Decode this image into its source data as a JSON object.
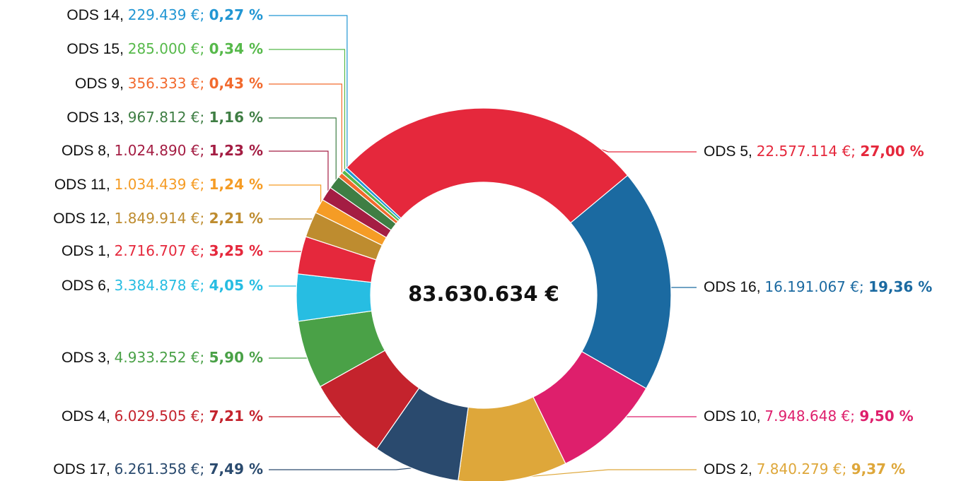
{
  "chart_data": {
    "type": "pie",
    "donut": true,
    "center_label": "83.630.634 €",
    "categories": [
      "ODS 5",
      "ODS 16",
      "ODS 10",
      "ODS 2",
      "ODS 17",
      "ODS 4",
      "ODS 3",
      "ODS 6",
      "ODS 1",
      "ODS 12",
      "ODS 11",
      "ODS 8",
      "ODS 13",
      "ODS 9",
      "ODS 15",
      "ODS 14"
    ],
    "values": [
      22577114,
      16191067,
      7948648,
      7840279,
      6261358,
      6029505,
      4933252,
      3384878,
      2716707,
      1849914,
      1034439,
      1024890,
      967812,
      356333,
      285000,
      229439
    ],
    "value_labels": [
      "22.577.114 €",
      "16.191.067 €",
      "7.948.648 €",
      "7.840.279 €",
      "6.261.358 €",
      "6.029.505 €",
      "4.933.252 €",
      "3.384.878 €",
      "2.716.707 €",
      "1.849.914 €",
      "1.034.439 €",
      "1.024.890 €",
      "967.812 €",
      "356.333 €",
      "285.000 €",
      "229.439 €"
    ],
    "percents": [
      27.0,
      19.36,
      9.5,
      9.37,
      7.49,
      7.21,
      5.9,
      4.05,
      3.25,
      2.21,
      1.24,
      1.23,
      1.16,
      0.43,
      0.34,
      0.27
    ],
    "percent_labels": [
      "27,00 %",
      "19,36 %",
      "9,50 %",
      "9,37 %",
      "7,49 %",
      "7,21 %",
      "5,90 %",
      "4,05 %",
      "3,25 %",
      "2,21 %",
      "1,24 %",
      "1,23 %",
      "1,16 %",
      "0,43 %",
      "0,34 %",
      "0,27 %"
    ],
    "colors": [
      "#e5283c",
      "#1b6aa1",
      "#de1f6c",
      "#dea73a",
      "#2a4a6e",
      "#c4232d",
      "#4aa147",
      "#27bde2",
      "#e5283c",
      "#be8c2f",
      "#f59c25",
      "#a41d43",
      "#3f7e44",
      "#f26a2e",
      "#56b94a",
      "#2196d3"
    ]
  }
}
